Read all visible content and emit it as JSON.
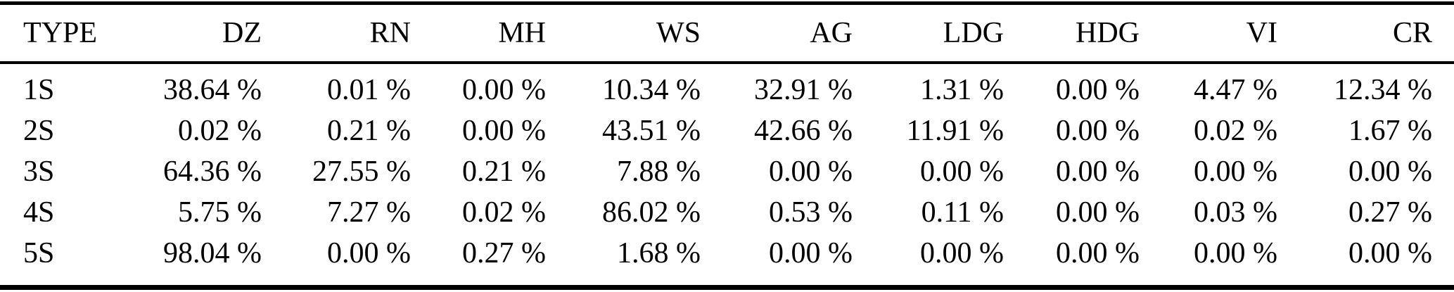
{
  "page": {
    "background": "#ffffff",
    "text_color": "#000000"
  },
  "table": {
    "columns": [
      "TYPE",
      "DZ",
      "RN",
      "MH",
      "WS",
      "AG",
      "LDG",
      "HDG",
      "VI",
      "CR"
    ],
    "rows": [
      {
        "type": "1S",
        "values": [
          "38.64 %",
          "0.01 %",
          "0.00 %",
          "10.34 %",
          "32.91 %",
          "1.31 %",
          "0.00 %",
          "4.47 %",
          "12.34 %"
        ]
      },
      {
        "type": "2S",
        "values": [
          "0.02 %",
          "0.21 %",
          "0.00 %",
          "43.51 %",
          "42.66 %",
          "11.91 %",
          "0.00 %",
          "0.02 %",
          "1.67 %"
        ]
      },
      {
        "type": "3S",
        "values": [
          "64.36 %",
          "27.55 %",
          "0.21 %",
          "7.88 %",
          "0.00 %",
          "0.00 %",
          "0.00 %",
          "0.00 %",
          "0.00 %"
        ]
      },
      {
        "type": "4S",
        "values": [
          "5.75 %",
          "7.27 %",
          "0.02 %",
          "86.02 %",
          "0.53 %",
          "0.11 %",
          "0.00 %",
          "0.03 %",
          "0.27 %"
        ]
      },
      {
        "type": "5S",
        "values": [
          "98.04 %",
          "0.00 %",
          "0.27 %",
          "1.68 %",
          "0.00 %",
          "0.00 %",
          "0.00 %",
          "0.00 %",
          "0.00 %"
        ]
      }
    ]
  }
}
